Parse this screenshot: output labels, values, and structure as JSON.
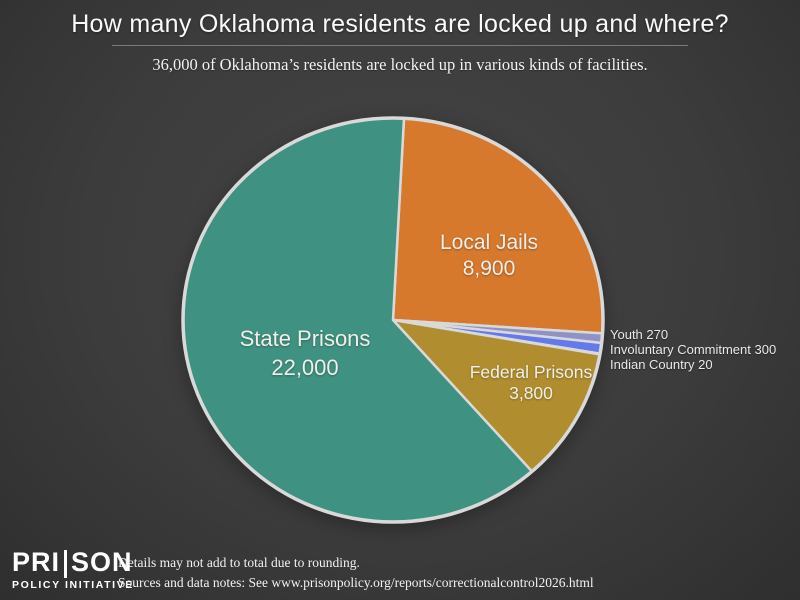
{
  "header": {
    "title": "How many Oklahoma residents are locked up and where?",
    "subtitle": "36,000 of Oklahoma’s residents are locked up in various kinds of facilities."
  },
  "chart_data": {
    "type": "pie",
    "title": "How many Oklahoma residents are locked up and where?",
    "subtitle": "36,000 of Oklahoma’s residents are locked up in various kinds of facilities.",
    "total": 36000,
    "legend_position": "labels-on-slices, small slices labeled right",
    "slices": [
      {
        "label": "Local Jails",
        "value": 8900,
        "value_display": "8,900",
        "color": "#d7792d"
      },
      {
        "label": "Youth",
        "value": 270,
        "value_display": "270",
        "color": "#9092c6",
        "side_text": "Youth 270"
      },
      {
        "label": "Involuntary Commitment",
        "value": 300,
        "value_display": "300",
        "color": "#6379ec",
        "side_text": "Involuntary Commitment 300"
      },
      {
        "label": "Indian Country",
        "value": 20,
        "value_display": "20",
        "color": "#c9cdd4",
        "side_text": "Indian Country 20"
      },
      {
        "label": "Federal Prisons",
        "value": 3800,
        "value_display": "3,800",
        "color": "#b08e2f"
      },
      {
        "label": "State Prisons",
        "value": 22000,
        "value_display": "22,000",
        "color": "#3f9282"
      }
    ],
    "slice_border_color": "#d9d9d9",
    "background_color": "#3c3c3c"
  },
  "footer": {
    "logo": {
      "part1": "PRI",
      "part2": "SON",
      "subtitle": "POLICY INITIATIVE"
    },
    "note_rounding": "Details may not add to total due to rounding.",
    "note_sources": "Sources and data notes: See www.prisonpolicy.org/reports/correctionalcontrol2026.html"
  }
}
